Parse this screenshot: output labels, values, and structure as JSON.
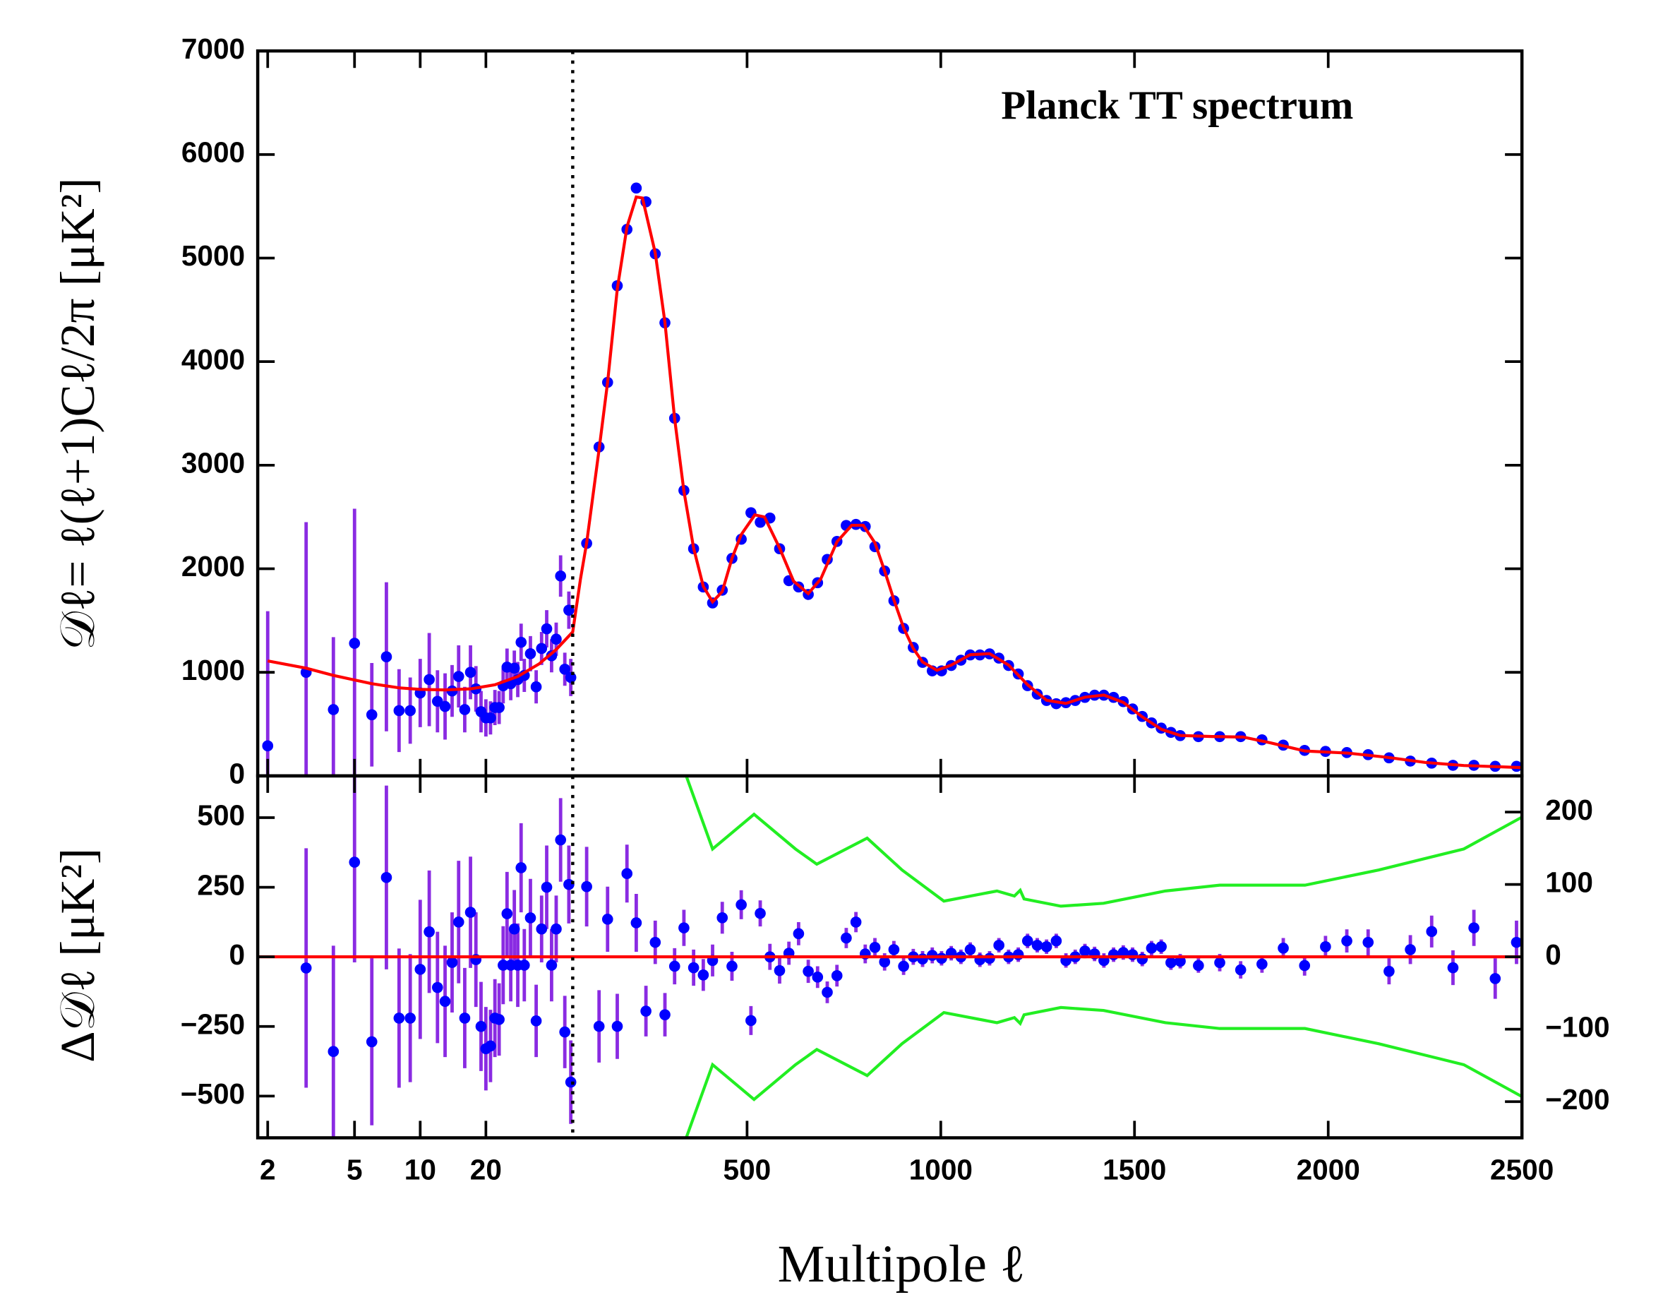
{
  "chart_data": [
    {
      "type": "scatter",
      "title": "Planck TT spectrum",
      "ylabel": "𝒟ℓ= ℓ(ℓ+1)Cℓ/2π [μK²]",
      "xscale": "log-linear",
      "xlim": [
        1.8,
        2500
      ],
      "xbreak": 50,
      "ylim": [
        0,
        7000
      ],
      "yticks": [
        0,
        1000,
        2000,
        3000,
        4000,
        5000,
        6000,
        7000
      ],
      "series": [
        {
          "x": [
            2,
            3,
            4,
            5,
            6,
            7,
            8,
            9,
            10,
            11,
            12,
            13,
            14,
            15,
            16,
            17,
            18,
            19,
            20,
            21,
            22,
            23,
            24,
            25,
            26,
            27,
            28,
            29,
            30,
            32,
            34,
            36,
            38,
            40,
            42,
            44,
            46,
            48,
            49
          ],
          "values": [
            290,
            1000,
            640,
            1280,
            590,
            1150,
            630,
            630,
            800,
            930,
            720,
            670,
            820,
            960,
            640,
            1000,
            840,
            620,
            560,
            560,
            660,
            660,
            870,
            1050,
            890,
            1040,
            930,
            1290,
            970,
            1180,
            860,
            1230,
            1420,
            1160,
            1320,
            1930,
            1030,
            1600,
            950
          ],
          "errors": [
            1300,
            1450,
            700,
            1300,
            500,
            720,
            400,
            320,
            330,
            450,
            300,
            320,
            250,
            300,
            220,
            260,
            220,
            200,
            180,
            160,
            170,
            160,
            170,
            180,
            160,
            170,
            170,
            180,
            160,
            170,
            160,
            160,
            180,
            160,
            160,
            200,
            160,
            180,
            180
          ],
          "color": "#0000ff",
          "error_color": "#8a2be2"
        },
        {
          "x": [
            86,
            118,
            140,
            165,
            190,
            214,
            239,
            263,
            288,
            313,
            337,
            362,
            387,
            411,
            436,
            461,
            485,
            510,
            534,
            559,
            584,
            608,
            633,
            658,
            682,
            707,
            732,
            756,
            781,
            805,
            830,
            855,
            879,
            904,
            929,
            953,
            978,
            1002,
            1027,
            1052,
            1076,
            1101,
            1126,
            1150,
            1175,
            1200,
            1224,
            1249,
            1273,
            1298,
            1323,
            1347,
            1372,
            1397,
            1421,
            1446,
            1471,
            1495,
            1520,
            1544,
            1569,
            1594,
            1618,
            1665,
            1720,
            1774,
            1829,
            1884,
            1939,
            1993,
            2048,
            2103,
            2157,
            2212,
            2267,
            2322,
            2376,
            2431,
            2486
          ],
          "values": [
            2245,
            3176,
            3800,
            4733,
            5277,
            5676,
            5543,
            5041,
            4375,
            3453,
            2756,
            2193,
            1824,
            1670,
            1793,
            2100,
            2285,
            2541,
            2449,
            2490,
            2193,
            1885,
            1824,
            1752,
            1865,
            2090,
            2264,
            2418,
            2428,
            2408,
            2213,
            1978,
            1691,
            1424,
            1240,
            1096,
            1014,
            1014,
            1066,
            1117,
            1168,
            1168,
            1178,
            1137,
            1066,
            984,
            871,
            789,
            728,
            697,
            707,
            728,
            758,
            779,
            779,
            758,
            717,
            646,
            574,
            512,
            461,
            420,
            389,
            379,
            379,
            379,
            348,
            297,
            246,
            236,
            225,
            205,
            174,
            143,
            123,
            102,
            102,
            92,
            92
          ],
          "color": "#0000ff"
        },
        {
          "type": "line",
          "x": [
            2,
            3,
            4,
            6,
            8,
            10,
            13,
            17,
            22,
            28,
            35,
            42,
            50,
            70,
            86,
            118,
            140,
            165,
            190,
            214,
            230,
            263,
            288,
            313,
            337,
            362,
            387,
            411,
            436,
            461,
            485,
            520,
            545,
            584,
            620,
            658,
            690,
            732,
            770,
            800,
            830,
            855,
            879,
            904,
            929,
            953,
            990,
            1027,
            1076,
            1126,
            1175,
            1224,
            1273,
            1323,
            1372,
            1421,
            1471,
            1520,
            1569,
            1618,
            1700,
            1780,
            1850,
            1940,
            2050,
            2150,
            2250,
            2350,
            2500
          ],
          "values": [
            1110,
            1040,
            970,
            890,
            850,
            835,
            830,
            840,
            880,
            960,
            1080,
            1220,
            1390,
            1900,
            2250,
            3150,
            3800,
            4700,
            5300,
            5590,
            5580,
            5050,
            4380,
            3450,
            2750,
            2200,
            1830,
            1680,
            1780,
            2100,
            2330,
            2520,
            2500,
            2200,
            1880,
            1760,
            1900,
            2260,
            2420,
            2420,
            2250,
            1980,
            1700,
            1430,
            1230,
            1100,
            1020,
            1070,
            1170,
            1180,
            1070,
            880,
            730,
            700,
            760,
            780,
            710,
            570,
            450,
            390,
            380,
            375,
            320,
            240,
            220,
            180,
            130,
            100,
            80
          ],
          "color": "#ff0000"
        }
      ]
    },
    {
      "type": "scatter",
      "ylabel": "Δ𝒟ℓ [μK²]",
      "xlabel": "Multipole ℓ",
      "xscale": "log-linear",
      "xlim": [
        1.8,
        2500
      ],
      "xbreak": 50,
      "xticks": [
        2,
        5,
        10,
        20,
        500,
        1000,
        1500,
        2000,
        2500
      ],
      "ylim": [
        -650,
        650
      ],
      "yticks": [
        {
          "value": -500,
          "label": "−500"
        },
        {
          "value": -250,
          "label": "−250"
        },
        0,
        250,
        500
      ],
      "y2lim": [
        -250,
        250
      ],
      "y2ticks": [
        {
          "value": -200,
          "label": "−200"
        },
        {
          "value": -100,
          "label": "−100"
        },
        0,
        100,
        200
      ],
      "series": [
        {
          "x": [
            3,
            4,
            5,
            6,
            7,
            8,
            9,
            10,
            11,
            12,
            13,
            14,
            15,
            16,
            17,
            18,
            19,
            20,
            21,
            22,
            23,
            24,
            25,
            26,
            27,
            28,
            29,
            30,
            32,
            34,
            36,
            38,
            40,
            42,
            44,
            46,
            48,
            49
          ],
          "values": [
            -40,
            -340,
            340,
            -305,
            285,
            -220,
            -220,
            -45,
            90,
            -110,
            -160,
            -20,
            125,
            -220,
            160,
            -10,
            -250,
            -330,
            -320,
            -220,
            -225,
            -30,
            155,
            -30,
            100,
            -30,
            320,
            -30,
            140,
            -230,
            100,
            250,
            -30,
            100,
            420,
            -270,
            260,
            -450
          ],
          "errors": [
            430,
            380,
            360,
            300,
            330,
            250,
            230,
            250,
            220,
            200,
            200,
            180,
            220,
            180,
            200,
            170,
            160,
            150,
            130,
            140,
            130,
            140,
            150,
            130,
            140,
            150,
            160,
            130,
            140,
            130,
            120,
            150,
            130,
            120,
            150,
            130,
            140,
            150
          ],
          "color": "#0000ff",
          "error_color": "#8a2be2"
        },
        {
          "axis": "y2",
          "x": [
            86,
            118,
            140,
            165,
            190,
            214,
            239,
            263,
            288,
            313,
            337,
            362,
            387,
            411,
            436,
            461,
            485,
            510,
            534,
            559,
            584,
            608,
            633,
            658,
            682,
            707,
            732,
            756,
            781,
            805,
            830,
            855,
            879,
            904,
            929,
            953,
            978,
            1002,
            1027,
            1052,
            1076,
            1101,
            1126,
            1150,
            1175,
            1200,
            1224,
            1249,
            1273,
            1298,
            1323,
            1347,
            1372,
            1397,
            1421,
            1446,
            1471,
            1495,
            1520,
            1544,
            1569,
            1594,
            1618,
            1665,
            1720,
            1774,
            1829,
            1884,
            1939,
            1993,
            2048,
            2103,
            2157,
            2212,
            2267,
            2322,
            2376,
            2431,
            2486
          ],
          "values": [
            97,
            -96,
            52,
            -96,
            115,
            47,
            -75,
            20,
            -80,
            -13,
            40,
            -15,
            -25,
            -5,
            54,
            -13,
            72,
            -88,
            60,
            0,
            -19,
            5,
            32,
            -20,
            -28,
            -49,
            -26,
            26,
            48,
            4,
            13,
            -7,
            10,
            -13,
            0,
            -3,
            2,
            -2,
            5,
            0,
            10,
            -4,
            -2,
            16,
            0,
            3,
            22,
            16,
            14,
            22,
            -5,
            0,
            8,
            4,
            -5,
            3,
            6,
            3,
            -3,
            12,
            14,
            -8,
            -6,
            -12,
            -8,
            -18,
            -10,
            12,
            -12,
            14,
            22,
            20,
            -20,
            10,
            35,
            -15,
            40,
            -30,
            20
          ],
          "errors": [
            55,
            50,
            45,
            45,
            40,
            40,
            35,
            30,
            30,
            25,
            25,
            25,
            22,
            22,
            22,
            20,
            20,
            20,
            18,
            18,
            18,
            16,
            16,
            16,
            15,
            15,
            15,
            14,
            14,
            13,
            13,
            12,
            12,
            12,
            11,
            11,
            11,
            10,
            10,
            10,
            10,
            10,
            10,
            10,
            10,
            10,
            10,
            10,
            10,
            10,
            10,
            10,
            10,
            10,
            10,
            10,
            10,
            10,
            10,
            10,
            10,
            10,
            10,
            10,
            12,
            12,
            12,
            14,
            14,
            15,
            16,
            18,
            18,
            20,
            22,
            24,
            25,
            28,
            30
          ],
          "color": "#0000ff",
          "error_color": "#8a2be2"
        },
        {
          "type": "line",
          "x": [
            1.8,
            2500
          ],
          "values": [
            0,
            0
          ],
          "color": "#ff0000"
        },
        {
          "type": "line",
          "axis": "y2",
          "x": [
            343,
            411,
            518,
            625,
            680,
            810,
            900,
            1008,
            1145,
            1190,
            1205,
            1215,
            1310,
            1420,
            1580,
            1720,
            1940,
            2130,
            2350,
            2500
          ],
          "values": [
            250,
            149,
            197,
            149,
            128,
            164,
            120,
            77,
            91,
            84,
            92,
            80,
            70,
            74,
            91,
            99,
            99,
            120,
            149,
            193
          ],
          "color": "#22ee22"
        },
        {
          "type": "line",
          "axis": "y2",
          "x": [
            343,
            411,
            518,
            625,
            680,
            810,
            900,
            1008,
            1145,
            1190,
            1205,
            1215,
            1310,
            1420,
            1580,
            1720,
            1940,
            2130,
            2350,
            2500
          ],
          "values": [
            -250,
            -149,
            -197,
            -149,
            -128,
            -164,
            -120,
            -77,
            -91,
            -84,
            -92,
            -80,
            -70,
            -74,
            -91,
            -99,
            -99,
            -120,
            -149,
            -193
          ],
          "color": "#22ee22"
        }
      ]
    }
  ]
}
